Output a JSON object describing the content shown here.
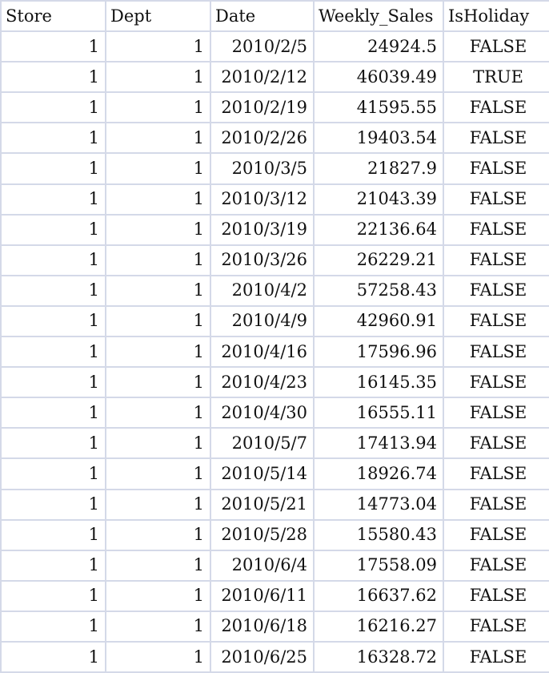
{
  "sheet": {
    "headers": [
      "Store",
      "Dept",
      "Date",
      "Weekly_Sales",
      "IsHoliday"
    ],
    "rows": [
      [
        "1",
        "1",
        "2010/2/5",
        "24924.5",
        "FALSE"
      ],
      [
        "1",
        "1",
        "2010/2/12",
        "46039.49",
        "TRUE"
      ],
      [
        "1",
        "1",
        "2010/2/19",
        "41595.55",
        "FALSE"
      ],
      [
        "1",
        "1",
        "2010/2/26",
        "19403.54",
        "FALSE"
      ],
      [
        "1",
        "1",
        "2010/3/5",
        "21827.9",
        "FALSE"
      ],
      [
        "1",
        "1",
        "2010/3/12",
        "21043.39",
        "FALSE"
      ],
      [
        "1",
        "1",
        "2010/3/19",
        "22136.64",
        "FALSE"
      ],
      [
        "1",
        "1",
        "2010/3/26",
        "26229.21",
        "FALSE"
      ],
      [
        "1",
        "1",
        "2010/4/2",
        "57258.43",
        "FALSE"
      ],
      [
        "1",
        "1",
        "2010/4/9",
        "42960.91",
        "FALSE"
      ],
      [
        "1",
        "1",
        "2010/4/16",
        "17596.96",
        "FALSE"
      ],
      [
        "1",
        "1",
        "2010/4/23",
        "16145.35",
        "FALSE"
      ],
      [
        "1",
        "1",
        "2010/4/30",
        "16555.11",
        "FALSE"
      ],
      [
        "1",
        "1",
        "2010/5/7",
        "17413.94",
        "FALSE"
      ],
      [
        "1",
        "1",
        "2010/5/14",
        "18926.74",
        "FALSE"
      ],
      [
        "1",
        "1",
        "2010/5/21",
        "14773.04",
        "FALSE"
      ],
      [
        "1",
        "1",
        "2010/5/28",
        "15580.43",
        "FALSE"
      ],
      [
        "1",
        "1",
        "2010/6/4",
        "17558.09",
        "FALSE"
      ],
      [
        "1",
        "1",
        "2010/6/11",
        "16637.62",
        "FALSE"
      ],
      [
        "1",
        "1",
        "2010/6/18",
        "16216.27",
        "FALSE"
      ],
      [
        "1",
        "1",
        "2010/6/25",
        "16328.72",
        "FALSE"
      ]
    ]
  }
}
